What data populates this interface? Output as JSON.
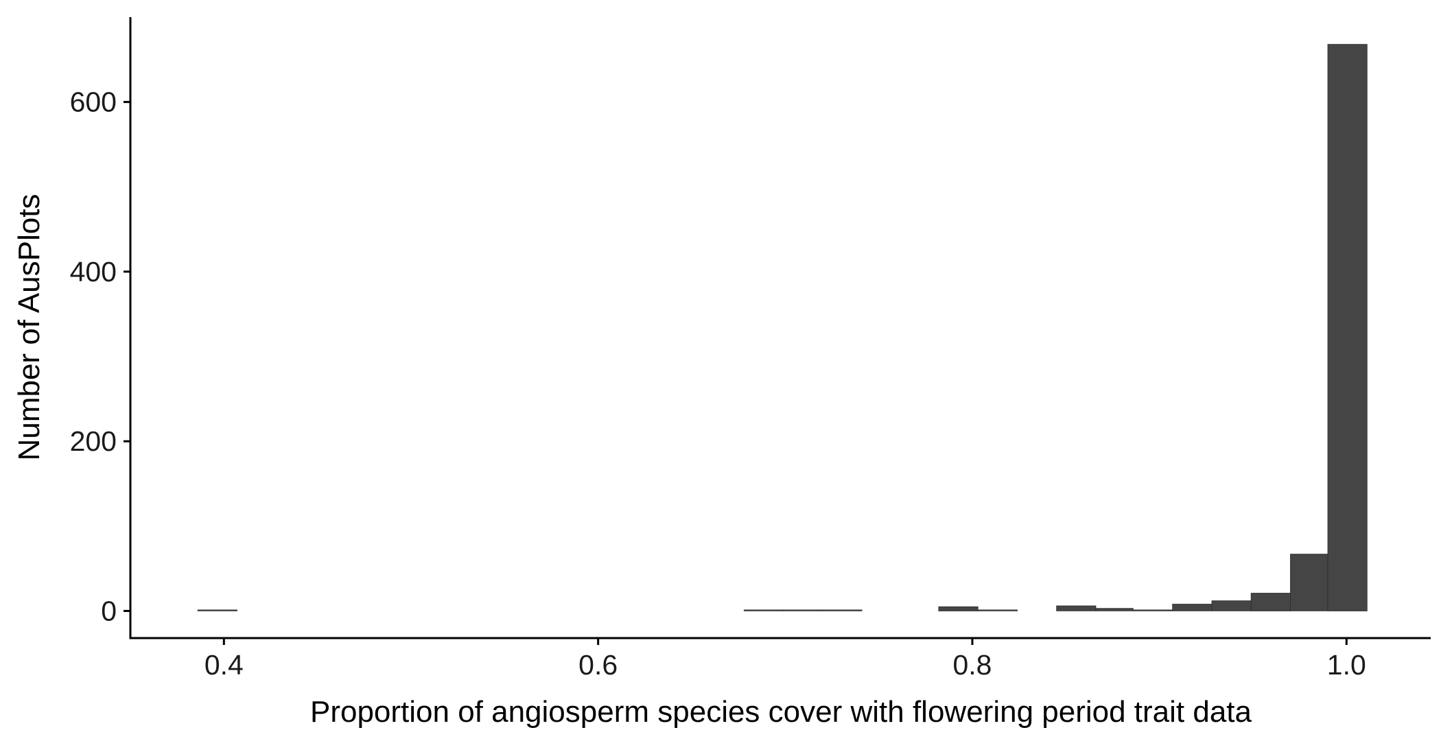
{
  "chart_data": {
    "type": "bar",
    "subtype": "histogram",
    "title": "",
    "xlabel": "Proportion of angiosperm species cover with flowering period trait data",
    "ylabel": "Number of AusPlots",
    "xlim": [
      0.35,
      1.045
    ],
    "ylim": [
      -32,
      700
    ],
    "x_ticks": [
      {
        "value": 0.4,
        "label": "0.4"
      },
      {
        "value": 0.6,
        "label": "0.6"
      },
      {
        "value": 0.8,
        "label": "0.8"
      },
      {
        "value": 1.0,
        "label": "1.0"
      }
    ],
    "y_ticks": [
      {
        "value": 0,
        "label": "0"
      },
      {
        "value": 200,
        "label": "200"
      },
      {
        "value": 400,
        "label": "400"
      },
      {
        "value": 600,
        "label": "600"
      }
    ],
    "bin_width": 0.0208,
    "bars": [
      {
        "x0": 0.386,
        "x1": 0.407,
        "count": 1
      },
      {
        "x0": 0.678,
        "x1": 0.699,
        "count": 1
      },
      {
        "x0": 0.699,
        "x1": 0.72,
        "count": 1
      },
      {
        "x0": 0.72,
        "x1": 0.741,
        "count": 1
      },
      {
        "x0": 0.782,
        "x1": 0.803,
        "count": 5
      },
      {
        "x0": 0.803,
        "x1": 0.824,
        "count": 1
      },
      {
        "x0": 0.845,
        "x1": 0.866,
        "count": 6
      },
      {
        "x0": 0.866,
        "x1": 0.886,
        "count": 3
      },
      {
        "x0": 0.886,
        "x1": 0.907,
        "count": 1
      },
      {
        "x0": 0.907,
        "x1": 0.928,
        "count": 8
      },
      {
        "x0": 0.928,
        "x1": 0.949,
        "count": 12
      },
      {
        "x0": 0.949,
        "x1": 0.97,
        "count": 21
      },
      {
        "x0": 0.97,
        "x1": 0.99,
        "count": 67
      },
      {
        "x0": 0.99,
        "x1": 1.011,
        "count": 668
      }
    ],
    "bar_color": "#454545",
    "grid": false,
    "legend": "none"
  }
}
